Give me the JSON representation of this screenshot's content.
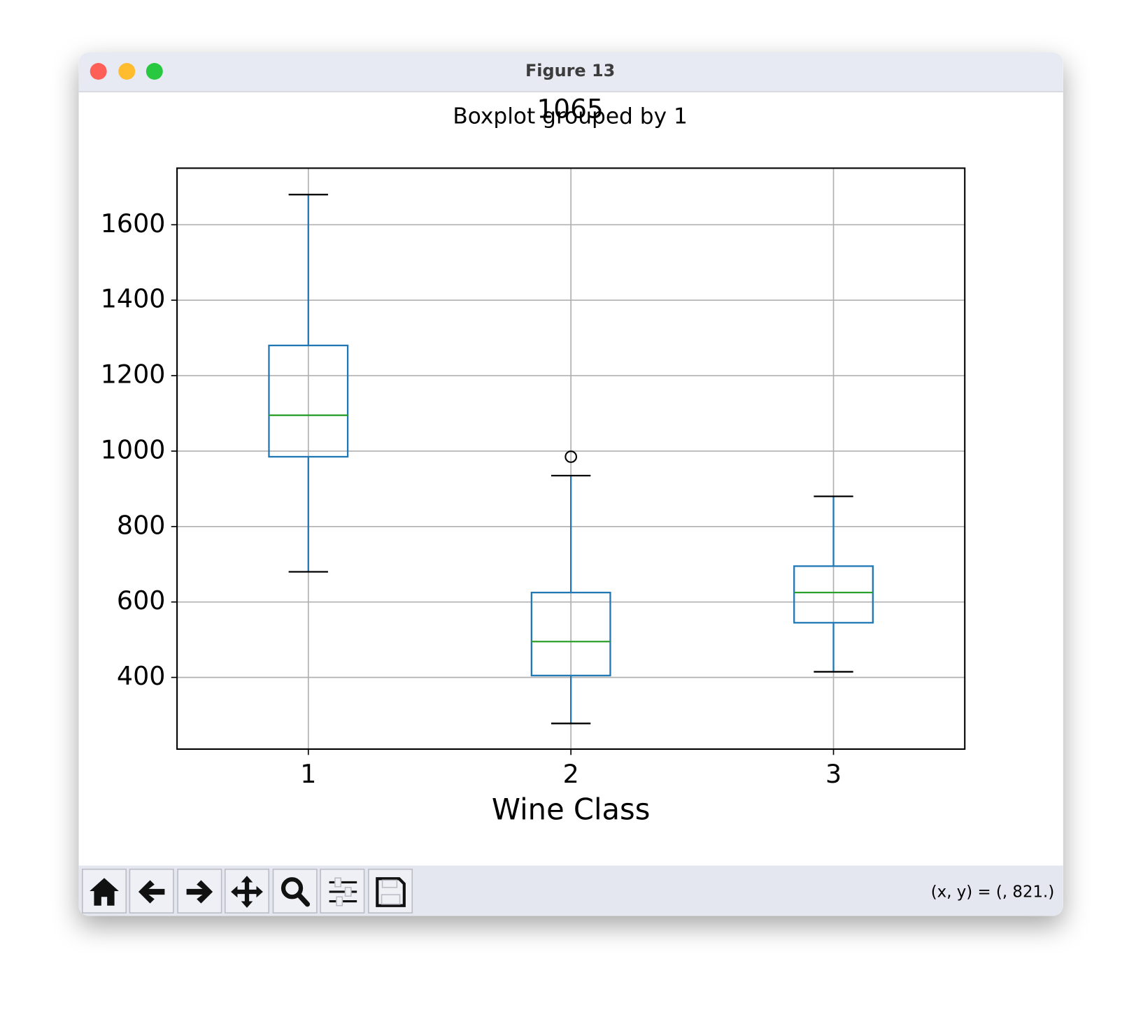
{
  "window": {
    "title": "Figure 13",
    "status": "(x, y) = (, 821.)"
  },
  "chart_data": {
    "type": "box",
    "suptitle": "Boxplot grouped by 1",
    "title": "1065",
    "x_label": "Wine Class",
    "categories": [
      "1",
      "2",
      "3"
    ],
    "box_color": "#1f77b4",
    "median_color": "#2ca02c",
    "cap_color": "#000000",
    "boxes": [
      {
        "whisker_low": 680,
        "q1": 985,
        "median": 1095,
        "q3": 1280,
        "whisker_high": 1680,
        "outliers": []
      },
      {
        "whisker_low": 278,
        "q1": 405,
        "median": 495,
        "q3": 625,
        "whisker_high": 935,
        "outliers": [
          985
        ]
      },
      {
        "whisker_low": 415,
        "q1": 545,
        "median": 625,
        "q3": 695,
        "whisker_high": 880,
        "outliers": []
      }
    ],
    "ylim": [
      210,
      1750
    ],
    "yticks": [
      400,
      600,
      800,
      1000,
      1200,
      1400,
      1600
    ],
    "grid": true
  }
}
